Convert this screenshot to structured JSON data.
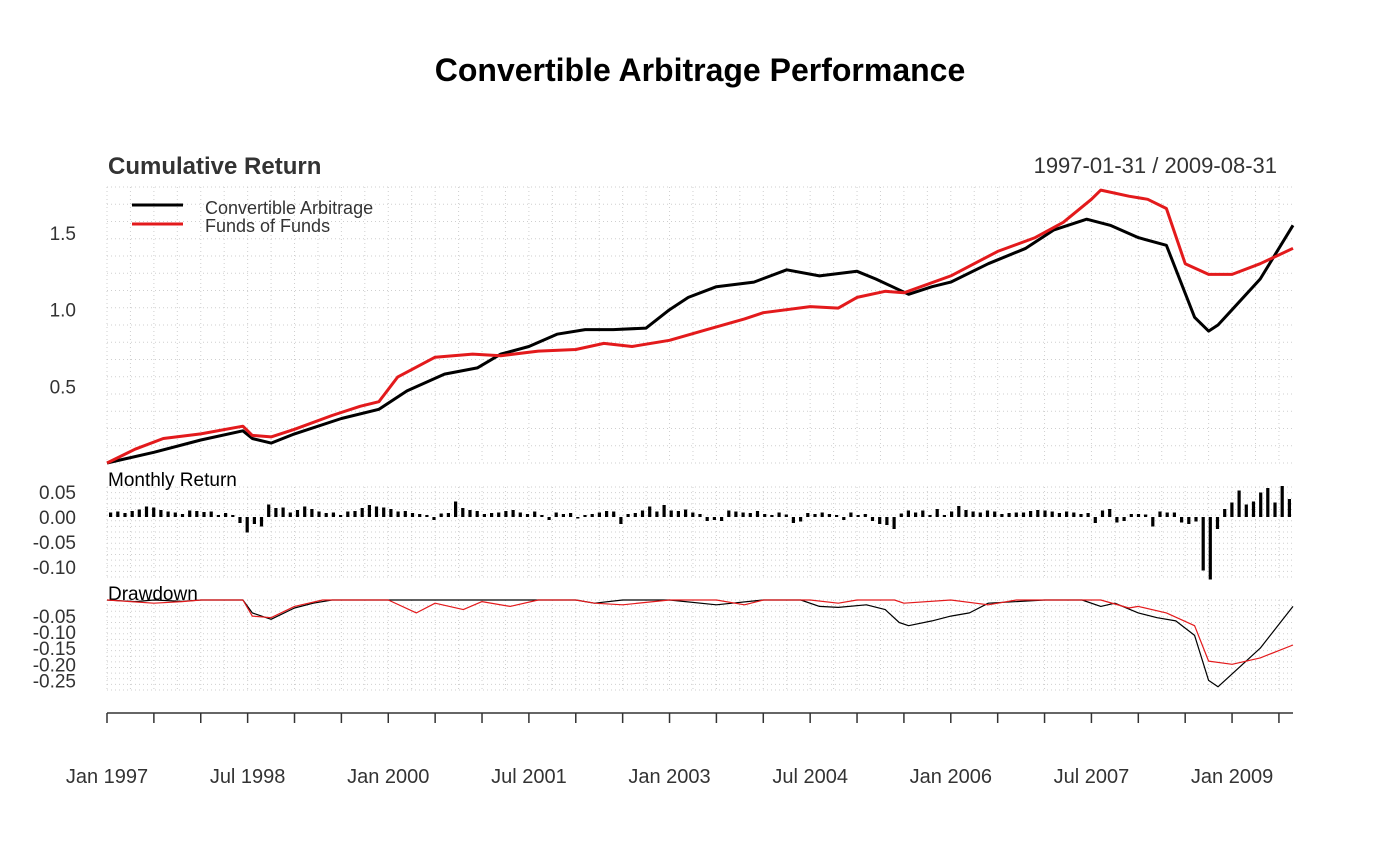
{
  "title": "Convertible Arbitrage Performance",
  "date_range": "1997-01-31 / 2009-08-31",
  "colors": {
    "convertible": "#000000",
    "funds": "#e31a1c",
    "grid": "#cfcfcf",
    "axis": "#333333"
  },
  "chart_data": [
    {
      "type": "line",
      "panel": "cumulative",
      "title": "Cumulative Return",
      "ylim": [
        0,
        1.8
      ],
      "yticks": [
        {
          "v": 0.5,
          "label": "0.5"
        },
        {
          "v": 1.0,
          "label": "1.0"
        },
        {
          "v": 1.5,
          "label": "1.5"
        }
      ],
      "legend": "top-left",
      "series": [
        {
          "name": "Convertible Arbitrage",
          "color": "#000000",
          "x": [
            1997.0,
            1997.5,
            1998.0,
            1998.45,
            1998.55,
            1998.75,
            1999.0,
            1999.5,
            1999.9,
            2000.2,
            2000.6,
            2000.95,
            2001.2,
            2001.5,
            2001.8,
            2002.1,
            2002.4,
            2002.75,
            2003.0,
            2003.2,
            2003.5,
            2003.9,
            2004.25,
            2004.6,
            2005.0,
            2005.2,
            2005.55,
            2005.8,
            2006.0,
            2006.4,
            2006.8,
            2007.1,
            2007.45,
            2007.7,
            2008.0,
            2008.3,
            2008.6,
            2008.75,
            2008.85,
            2009.0,
            2009.3,
            2009.65
          ],
          "y": [
            0.0,
            0.07,
            0.15,
            0.21,
            0.16,
            0.13,
            0.19,
            0.29,
            0.35,
            0.47,
            0.58,
            0.62,
            0.71,
            0.76,
            0.84,
            0.87,
            0.87,
            0.88,
            1.0,
            1.08,
            1.15,
            1.18,
            1.26,
            1.22,
            1.25,
            1.2,
            1.1,
            1.15,
            1.18,
            1.3,
            1.4,
            1.52,
            1.59,
            1.55,
            1.47,
            1.42,
            0.95,
            0.86,
            0.9,
            1.0,
            1.2,
            1.55
          ]
        },
        {
          "name": "Funds of Funds",
          "color": "#e31a1c",
          "x": [
            1997.0,
            1997.3,
            1997.6,
            1998.0,
            1998.45,
            1998.55,
            1998.75,
            1999.0,
            1999.4,
            1999.7,
            1999.9,
            2000.1,
            2000.5,
            2000.9,
            2001.2,
            2001.6,
            2002.0,
            2002.3,
            2002.6,
            2003.0,
            2003.4,
            2003.8,
            2004.0,
            2004.5,
            2004.8,
            2005.0,
            2005.3,
            2005.5,
            2006.0,
            2006.5,
            2006.9,
            2007.2,
            2007.5,
            2007.6,
            2007.9,
            2008.1,
            2008.3,
            2008.5,
            2008.75,
            2009.0,
            2009.3,
            2009.65
          ],
          "y": [
            0.0,
            0.09,
            0.16,
            0.19,
            0.24,
            0.18,
            0.17,
            0.22,
            0.31,
            0.37,
            0.4,
            0.56,
            0.69,
            0.71,
            0.7,
            0.73,
            0.74,
            0.78,
            0.76,
            0.8,
            0.87,
            0.94,
            0.98,
            1.02,
            1.01,
            1.08,
            1.12,
            1.11,
            1.22,
            1.38,
            1.47,
            1.57,
            1.72,
            1.78,
            1.74,
            1.72,
            1.66,
            1.3,
            1.23,
            1.23,
            1.3,
            1.4
          ]
        }
      ]
    },
    {
      "type": "bar",
      "panel": "monthly",
      "title": "Monthly Return",
      "ylim": [
        -0.12,
        0.06
      ],
      "yticks": [
        {
          "v": 0.05,
          "label": "0.05"
        },
        {
          "v": 0.0,
          "label": "0.00"
        },
        {
          "v": -0.05,
          "label": "-0.05"
        },
        {
          "v": -0.1,
          "label": "-0.10"
        }
      ],
      "series": [
        {
          "name": "Convertible Arbitrage",
          "color": "#000000",
          "values": [
            0.009,
            0.011,
            0.008,
            0.012,
            0.015,
            0.021,
            0.019,
            0.014,
            0.011,
            0.009,
            0.006,
            0.013,
            0.012,
            0.01,
            0.011,
            0.004,
            0.008,
            0.004,
            -0.012,
            -0.031,
            -0.014,
            -0.019,
            0.025,
            0.018,
            0.019,
            0.009,
            0.014,
            0.021,
            0.016,
            0.011,
            0.008,
            0.009,
            0.004,
            0.011,
            0.012,
            0.018,
            0.024,
            0.021,
            0.019,
            0.016,
            0.011,
            0.012,
            0.008,
            0.006,
            0.004,
            -0.006,
            0.007,
            0.008,
            0.031,
            0.018,
            0.014,
            0.012,
            0.006,
            0.008,
            0.009,
            0.012,
            0.014,
            0.009,
            0.006,
            0.011,
            0.004,
            -0.006,
            0.009,
            0.006,
            0.008,
            -0.003,
            0.004,
            0.006,
            0.009,
            0.012,
            0.011,
            -0.014,
            0.006,
            0.008,
            0.013,
            0.021,
            0.011,
            0.024,
            0.013,
            0.012,
            0.015,
            0.009,
            0.006,
            -0.008,
            -0.006,
            -0.008,
            0.013,
            0.011,
            0.009,
            0.008,
            0.012,
            0.006,
            0.004,
            0.009,
            0.005,
            -0.012,
            -0.009,
            0.008,
            0.006,
            0.009,
            0.006,
            0.004,
            -0.006,
            0.009,
            0.004,
            0.006,
            -0.008,
            -0.014,
            -0.016,
            -0.024,
            0.007,
            0.013,
            0.009,
            0.013,
            0.004,
            0.016,
            0.004,
            0.011,
            0.022,
            0.014,
            0.011,
            0.009,
            0.013,
            0.011,
            0.006,
            0.008,
            0.009,
            0.009,
            0.012,
            0.014,
            0.013,
            0.011,
            0.008,
            0.011,
            0.009,
            0.006,
            0.008,
            -0.012,
            0.013,
            0.016,
            -0.011,
            -0.008,
            0.006,
            0.006,
            0.005,
            -0.019,
            0.011,
            0.009,
            0.009,
            -0.011,
            -0.014,
            -0.009,
            -0.107,
            -0.125,
            -0.024,
            0.016,
            0.029,
            0.053,
            0.025,
            0.031,
            0.049,
            0.058,
            0.029,
            0.062,
            0.036
          ]
        }
      ]
    },
    {
      "type": "line",
      "panel": "drawdown",
      "title": "Drawdown",
      "ylim": [
        -0.28,
        0.0
      ],
      "yticks": [
        {
          "v": -0.05,
          "label": "-0.05"
        },
        {
          "v": -0.1,
          "label": "-0.10"
        },
        {
          "v": -0.15,
          "label": "-0.15"
        },
        {
          "v": -0.2,
          "label": "-0.20"
        },
        {
          "v": -0.25,
          "label": "-0.25"
        }
      ],
      "series": [
        {
          "name": "Convertible Arbitrage",
          "color": "#000000",
          "x": [
            1997.0,
            1997.3,
            1997.5,
            1997.8,
            1998.0,
            1998.3,
            1998.45,
            1998.55,
            1998.75,
            1999.0,
            1999.2,
            1999.4,
            2000.0,
            2001.0,
            2002.0,
            2002.2,
            2002.5,
            2003.0,
            2003.5,
            2004.0,
            2004.4,
            2004.6,
            2004.8,
            2005.1,
            2005.3,
            2005.45,
            2005.55,
            2005.8,
            2006.0,
            2006.2,
            2006.4,
            2007.0,
            2007.4,
            2007.6,
            2007.75,
            2008.0,
            2008.2,
            2008.4,
            2008.6,
            2008.75,
            2008.85,
            2009.0,
            2009.3,
            2009.65
          ],
          "y": [
            0,
            -0.005,
            0,
            -0.004,
            0,
            0,
            0,
            -0.04,
            -0.06,
            -0.025,
            -0.01,
            0,
            0,
            0,
            0,
            -0.01,
            0,
            0,
            -0.015,
            0,
            0,
            -0.02,
            -0.023,
            -0.015,
            -0.03,
            -0.07,
            -0.08,
            -0.065,
            -0.05,
            -0.04,
            -0.01,
            0,
            0,
            -0.02,
            -0.01,
            -0.04,
            -0.055,
            -0.065,
            -0.11,
            -0.25,
            -0.27,
            -0.23,
            -0.15,
            -0.02
          ]
        },
        {
          "name": "Funds of Funds",
          "color": "#e31a1c",
          "x": [
            1997.0,
            1997.5,
            1997.8,
            1998.0,
            1998.45,
            1998.55,
            1998.75,
            1999.0,
            1999.3,
            2000.0,
            2000.3,
            2000.5,
            2000.8,
            2001.0,
            2001.3,
            2001.6,
            2002.0,
            2002.2,
            2002.5,
            2003.0,
            2003.5,
            2003.8,
            2004.0,
            2004.5,
            2004.8,
            2005.0,
            2005.4,
            2005.5,
            2006.0,
            2006.4,
            2006.7,
            2007.0,
            2007.6,
            2007.9,
            2008.0,
            2008.3,
            2008.6,
            2008.75,
            2009.0,
            2009.3,
            2009.65
          ],
          "y": [
            0,
            -0.01,
            -0.005,
            0,
            0,
            -0.05,
            -0.055,
            -0.02,
            0,
            0,
            -0.04,
            -0.01,
            -0.03,
            -0.005,
            -0.02,
            0,
            0,
            -0.01,
            -0.015,
            0,
            0,
            -0.015,
            0,
            0,
            -0.01,
            0,
            0,
            -0.01,
            0,
            -0.015,
            0,
            0,
            0,
            -0.025,
            -0.02,
            -0.04,
            -0.08,
            -0.19,
            -0.2,
            -0.18,
            -0.14
          ]
        }
      ]
    }
  ],
  "x_axis": {
    "range": [
      1997.0,
      2009.65
    ],
    "ticks": [
      {
        "v": 1997.0,
        "label": "Jan 1997"
      },
      {
        "v": 1998.5,
        "label": "Jul 1998"
      },
      {
        "v": 2000.0,
        "label": "Jan 2000"
      },
      {
        "v": 2001.5,
        "label": "Jul 2001"
      },
      {
        "v": 2003.0,
        "label": "Jan 2003"
      },
      {
        "v": 2004.5,
        "label": "Jul 2004"
      },
      {
        "v": 2006.0,
        "label": "Jan 2006"
      },
      {
        "v": 2007.5,
        "label": "Jul 2007"
      },
      {
        "v": 2009.0,
        "label": "Jan 2009"
      }
    ]
  }
}
